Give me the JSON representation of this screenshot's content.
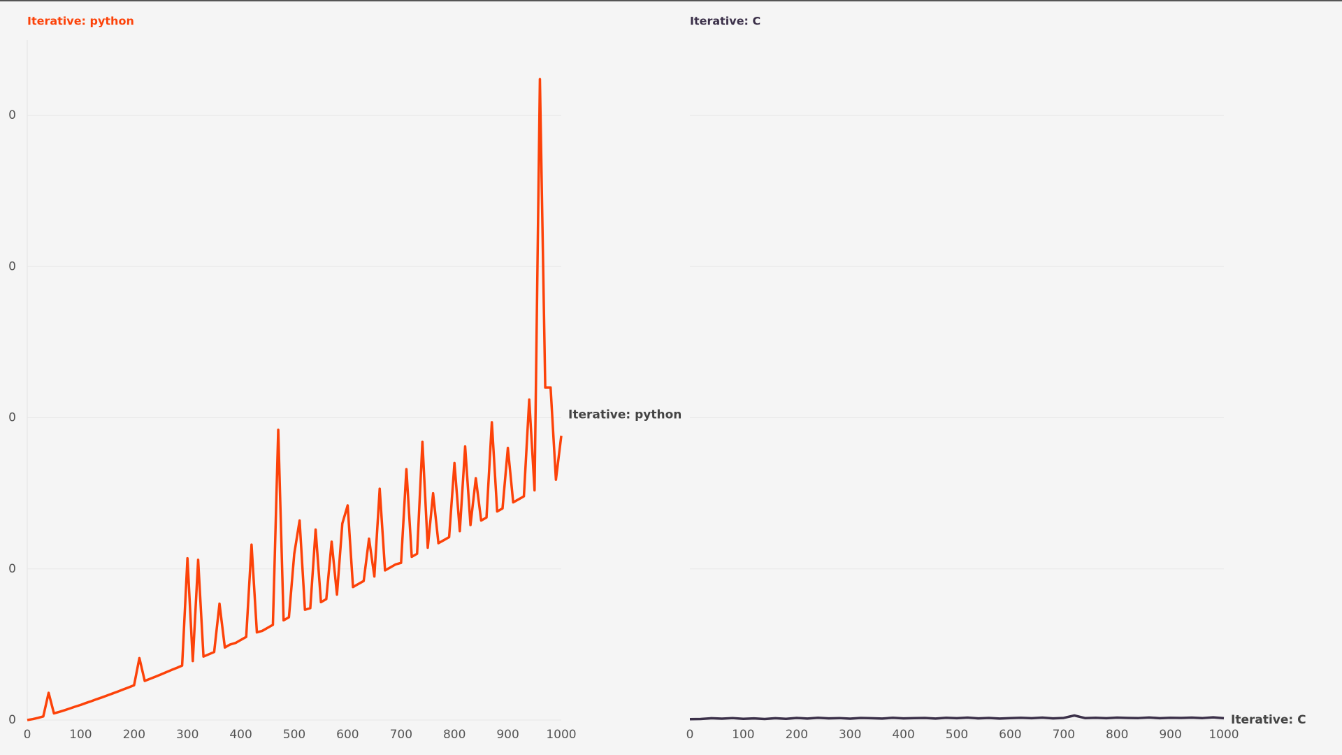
{
  "chart_data": [
    {
      "type": "line",
      "title": "Iterative: python",
      "title_color": "#fc4209",
      "x": [
        0,
        10,
        20,
        30,
        40,
        50,
        60,
        70,
        80,
        90,
        100,
        110,
        120,
        130,
        140,
        150,
        160,
        170,
        180,
        190,
        200,
        210,
        220,
        230,
        240,
        250,
        260,
        270,
        280,
        290,
        300,
        310,
        320,
        330,
        340,
        350,
        360,
        370,
        380,
        390,
        400,
        410,
        420,
        430,
        440,
        450,
        460,
        470,
        480,
        490,
        500,
        510,
        520,
        530,
        540,
        550,
        560,
        570,
        580,
        590,
        600,
        610,
        620,
        630,
        640,
        650,
        660,
        670,
        680,
        690,
        700,
        710,
        720,
        730,
        740,
        750,
        760,
        770,
        780,
        790,
        800,
        810,
        820,
        830,
        840,
        850,
        860,
        870,
        880,
        890,
        900,
        910,
        920,
        930,
        940,
        950,
        960,
        970,
        980,
        990,
        1000
      ],
      "series": [
        {
          "name": "Iterative: python",
          "color": "#fc4209",
          "values": [
            0,
            0.0006,
            0.0014,
            0.0024,
            0.018,
            0.0044,
            0.0054,
            0.0065,
            0.0077,
            0.0089,
            0.01,
            0.0113,
            0.0125,
            0.0138,
            0.015,
            0.0163,
            0.0176,
            0.0189,
            0.0203,
            0.0216,
            0.023,
            0.041,
            0.0259,
            0.0273,
            0.0287,
            0.0301,
            0.0316,
            0.0331,
            0.0345,
            0.036,
            0.107,
            0.039,
            0.106,
            0.042,
            0.0435,
            0.045,
            0.077,
            0.048,
            0.05,
            0.051,
            0.053,
            0.055,
            0.116,
            0.058,
            0.059,
            0.061,
            0.063,
            0.192,
            0.066,
            0.068,
            0.11,
            0.132,
            0.073,
            0.074,
            0.126,
            0.078,
            0.08,
            0.118,
            0.083,
            0.13,
            0.142,
            0.088,
            0.09,
            0.092,
            0.12,
            0.095,
            0.153,
            0.099,
            0.101,
            0.103,
            0.104,
            0.166,
            0.108,
            0.11,
            0.184,
            0.114,
            0.15,
            0.117,
            0.119,
            0.121,
            0.17,
            0.125,
            0.181,
            0.129,
            0.16,
            0.132,
            0.134,
            0.197,
            0.138,
            0.14,
            0.18,
            0.144,
            0.146,
            0.148,
            0.212,
            0.152,
            0.424,
            0.22,
            0.22,
            0.159,
            0.188
          ]
        }
      ],
      "xlim": [
        0,
        1000
      ],
      "xticks": [
        0,
        100,
        200,
        300,
        400,
        500,
        600,
        700,
        800,
        900,
        1000
      ],
      "ylim": [
        0,
        0.45
      ],
      "yticks": [
        {
          "value": 0,
          "label": "0"
        },
        {
          "value": 0.1,
          "label": "0"
        },
        {
          "value": 0.2,
          "label": "0"
        },
        {
          "value": 0.3,
          "label": "0"
        },
        {
          "value": 0.4,
          "label": "0"
        }
      ],
      "grid": true
    },
    {
      "type": "line",
      "title": "Iterative: C",
      "title_color": "#3b3049",
      "x": [
        0,
        20,
        40,
        60,
        80,
        100,
        120,
        140,
        160,
        180,
        200,
        220,
        240,
        260,
        280,
        300,
        320,
        340,
        360,
        380,
        400,
        420,
        440,
        460,
        480,
        500,
        520,
        540,
        560,
        580,
        600,
        620,
        640,
        660,
        680,
        700,
        720,
        740,
        760,
        780,
        800,
        820,
        840,
        860,
        880,
        900,
        920,
        940,
        960,
        980,
        1000
      ],
      "series": [
        {
          "name": "Iterative: C",
          "color": "#3b3049",
          "values": [
            0.0006,
            0.0007,
            0.0012,
            0.0009,
            0.0013,
            0.0008,
            0.0011,
            0.0007,
            0.0012,
            0.0008,
            0.0014,
            0.001,
            0.0015,
            0.0011,
            0.0013,
            0.0009,
            0.0014,
            0.0012,
            0.001,
            0.0015,
            0.0011,
            0.0013,
            0.0014,
            0.001,
            0.0015,
            0.0012,
            0.0016,
            0.0011,
            0.0014,
            0.001,
            0.0013,
            0.0015,
            0.0012,
            0.0016,
            0.0011,
            0.0014,
            0.003,
            0.0013,
            0.0015,
            0.0012,
            0.0016,
            0.0014,
            0.0013,
            0.0017,
            0.0012,
            0.0015,
            0.0014,
            0.0016,
            0.0013,
            0.0018,
            0.0012
          ]
        }
      ],
      "xlim": [
        0,
        1000
      ],
      "xticks": [
        0,
        100,
        200,
        300,
        400,
        500,
        600,
        700,
        800,
        900,
        1000
      ],
      "ylim": [
        0,
        0.45
      ],
      "yticks": [
        0,
        0.1,
        0.2,
        0.3,
        0.4
      ],
      "grid": true
    }
  ]
}
